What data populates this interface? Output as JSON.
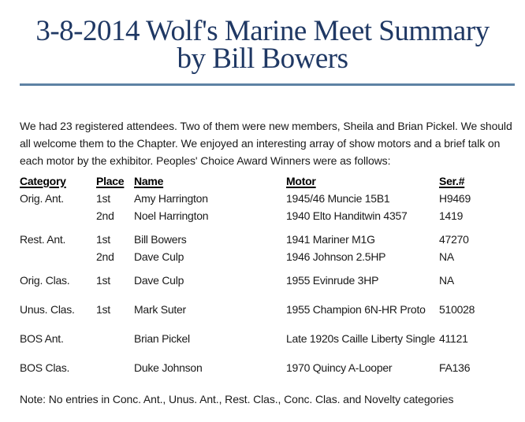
{
  "title": {
    "line1": "3-8-2014 Wolf's Marine Meet Summary",
    "line2": "by Bill Bowers",
    "text_color": "#1f3864",
    "rule_color": "#5e82a4"
  },
  "intro": {
    "lines": [
      "We had 23 registered attendees. Two of them were new members, Sheila and Brian Pickel. We should",
      "all welcome them to the Chapter. We enjoyed an interesting array of show motors and a brief talk on",
      "each motor by the exhibitor. Peoples' Choice Award Winners were as follows:"
    ]
  },
  "table": {
    "headers": [
      "Category",
      "Place",
      "Name",
      "Motor",
      "Ser.#"
    ],
    "groups": [
      {
        "category": "Orig. Ant.",
        "entries": [
          {
            "place": "1st",
            "name": "Amy Harrington",
            "motor": "1945/46 Muncie 15B1",
            "serial": "H9469"
          },
          {
            "place": "2nd",
            "name": "Noel Harrington",
            "motor": "1940 Elto Handitwin 4357",
            "serial": "1419"
          }
        ]
      },
      {
        "category": "Rest. Ant.",
        "entries": [
          {
            "place": "1st",
            "name": "Bill Bowers",
            "motor": "1941 Mariner M1G",
            "serial": "47270"
          },
          {
            "place": "2nd",
            "name": "Dave Culp",
            "motor": "1946 Johnson 2.5HP",
            "serial": "NA"
          }
        ]
      },
      {
        "category": "Orig. Clas.",
        "entries": [
          {
            "place": "1st",
            "name": "Dave Culp",
            "motor": "1955 Evinrude 3HP",
            "serial": "NA"
          }
        ]
      },
      {
        "category": "Unus. Clas.",
        "entries": [
          {
            "place": "1st",
            "name": "Mark Suter",
            "motor": "1955 Champion 6N-HR Proto",
            "serial": "510028"
          }
        ]
      },
      {
        "category": "BOS Ant.",
        "entries": [
          {
            "place": "",
            "name": "Brian Pickel",
            "motor": "Late 1920s Caille Liberty Single",
            "serial": "41121"
          }
        ]
      },
      {
        "category": "BOS Clas.",
        "entries": [
          {
            "place": "",
            "name": "Duke Johnson",
            "motor": "1970 Quincy A-Looper",
            "serial": "FA136"
          }
        ]
      }
    ]
  },
  "note": {
    "text": "Note: No entries in Conc. Ant., Unus. Ant., Rest. Clas., Conc. Clas. and Novelty categories"
  }
}
